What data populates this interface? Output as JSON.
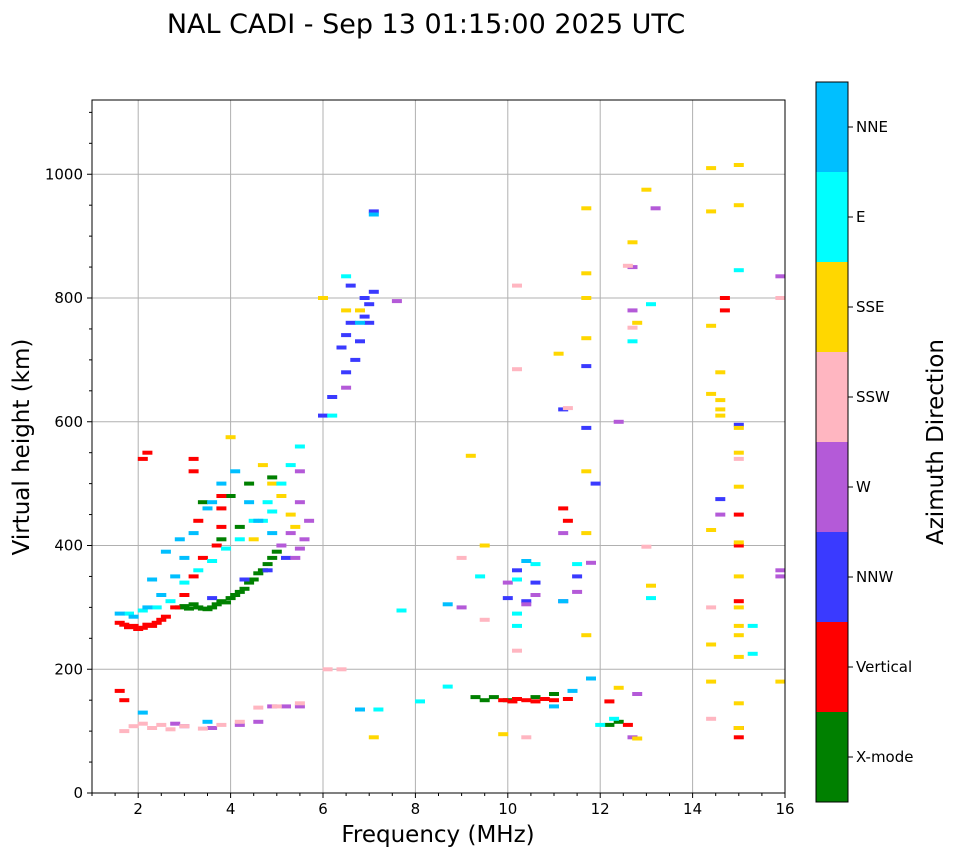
{
  "chart_data": {
    "type": "scatter",
    "title": "NAL CADI - Sep 13 01:15:00 2025 UTC",
    "xlabel": "Frequency (MHz)",
    "ylabel": "Virtual height (km)",
    "xlim": [
      1,
      16
    ],
    "ylim": [
      0,
      1120
    ],
    "x_ticks": [
      2,
      4,
      6,
      8,
      10,
      12,
      14,
      16
    ],
    "y_ticks": [
      0,
      200,
      400,
      600,
      800,
      1000
    ],
    "grid": true,
    "colorbar": {
      "label": "Azimuth Direction",
      "categories": [
        "X-mode",
        "Vertical",
        "NNW",
        "W",
        "SSW",
        "SSE",
        "E",
        "NNE"
      ],
      "colors": [
        "#008000",
        "#ff0000",
        "#3a3aff",
        "#b45ad8",
        "#ffb6c1",
        "#ffd700",
        "#00ffff",
        "#00bfff"
      ]
    },
    "series": [
      {
        "name": "X-mode",
        "points": [
          [
            2.9,
            300
          ],
          [
            3.0,
            302
          ],
          [
            3.1,
            298
          ],
          [
            3.2,
            305
          ],
          [
            3.3,
            300
          ],
          [
            3.4,
            298
          ],
          [
            3.5,
            297
          ],
          [
            3.6,
            300
          ],
          [
            3.7,
            305
          ],
          [
            3.8,
            310
          ],
          [
            3.9,
            308
          ],
          [
            4.0,
            315
          ],
          [
            4.1,
            320
          ],
          [
            4.2,
            325
          ],
          [
            4.3,
            330
          ],
          [
            4.4,
            340
          ],
          [
            4.5,
            345
          ],
          [
            4.6,
            355
          ],
          [
            4.7,
            360
          ],
          [
            4.8,
            370
          ],
          [
            4.9,
            380
          ],
          [
            5.0,
            390
          ],
          [
            3.4,
            470
          ],
          [
            4.0,
            480
          ],
          [
            4.4,
            500
          ],
          [
            4.9,
            510
          ],
          [
            3.8,
            410
          ],
          [
            4.2,
            430
          ],
          [
            9.3,
            155
          ],
          [
            9.5,
            150
          ],
          [
            9.7,
            155
          ],
          [
            10.0,
            150
          ],
          [
            10.6,
            155
          ],
          [
            11.0,
            160
          ],
          [
            12.4,
            115
          ],
          [
            12.2,
            110
          ]
        ]
      },
      {
        "name": "Vertical",
        "points": [
          [
            1.6,
            275
          ],
          [
            1.7,
            272
          ],
          [
            1.8,
            268
          ],
          [
            1.9,
            270
          ],
          [
            2.0,
            265
          ],
          [
            2.1,
            267
          ],
          [
            2.2,
            272
          ],
          [
            2.3,
            270
          ],
          [
            2.4,
            275
          ],
          [
            2.5,
            280
          ],
          [
            2.6,
            285
          ],
          [
            2.8,
            300
          ],
          [
            3.0,
            320
          ],
          [
            3.2,
            350
          ],
          [
            3.4,
            380
          ],
          [
            1.7,
            150
          ],
          [
            1.6,
            165
          ],
          [
            2.2,
            550
          ],
          [
            2.1,
            540
          ],
          [
            3.2,
            520
          ],
          [
            3.2,
            540
          ],
          [
            3.8,
            480
          ],
          [
            3.8,
            460
          ],
          [
            3.8,
            430
          ],
          [
            3.7,
            400
          ],
          [
            3.3,
            440
          ],
          [
            9.9,
            150
          ],
          [
            10.1,
            148
          ],
          [
            10.2,
            152
          ],
          [
            10.4,
            150
          ],
          [
            10.6,
            148
          ],
          [
            10.8,
            152
          ],
          [
            11.0,
            150
          ],
          [
            11.3,
            152
          ],
          [
            12.6,
            110
          ],
          [
            11.2,
            460
          ],
          [
            11.3,
            440
          ],
          [
            14.7,
            780
          ],
          [
            14.7,
            800
          ],
          [
            15.0,
            450
          ],
          [
            15.0,
            400
          ],
          [
            15.0,
            310
          ],
          [
            15.0,
            90
          ],
          [
            15.0,
            105
          ],
          [
            12.2,
            148
          ]
        ]
      },
      {
        "name": "NNW",
        "points": [
          [
            6.4,
            720
          ],
          [
            6.5,
            740
          ],
          [
            6.6,
            760
          ],
          [
            6.7,
            700
          ],
          [
            6.8,
            730
          ],
          [
            6.9,
            770
          ],
          [
            7.0,
            790
          ],
          [
            7.1,
            810
          ],
          [
            6.6,
            820
          ],
          [
            6.9,
            800
          ],
          [
            7.0,
            760
          ],
          [
            6.5,
            680
          ],
          [
            6.2,
            640
          ],
          [
            6.0,
            610
          ],
          [
            7.1,
            940
          ],
          [
            5.2,
            380
          ],
          [
            4.8,
            360
          ],
          [
            4.3,
            345
          ],
          [
            3.6,
            315
          ],
          [
            10.2,
            360
          ],
          [
            10.6,
            340
          ],
          [
            11.2,
            310
          ],
          [
            11.5,
            350
          ],
          [
            11.7,
            690
          ],
          [
            11.7,
            590
          ],
          [
            11.9,
            500
          ],
          [
            14.6,
            475
          ],
          [
            15.0,
            595
          ],
          [
            11.2,
            620
          ],
          [
            10.4,
            310
          ],
          [
            10.0,
            315
          ]
        ]
      },
      {
        "name": "W",
        "points": [
          [
            5.4,
            380
          ],
          [
            5.5,
            395
          ],
          [
            5.6,
            410
          ],
          [
            5.7,
            440
          ],
          [
            5.3,
            420
          ],
          [
            5.1,
            400
          ],
          [
            5.5,
            520
          ],
          [
            5.5,
            470
          ],
          [
            4.9,
            140
          ],
          [
            5.2,
            140
          ],
          [
            5.5,
            140
          ],
          [
            4.6,
            115
          ],
          [
            4.2,
            110
          ],
          [
            3.6,
            105
          ],
          [
            3.0,
            108
          ],
          [
            2.8,
            112
          ],
          [
            6.5,
            655
          ],
          [
            7.6,
            795
          ],
          [
            9.0,
            300
          ],
          [
            10.0,
            340
          ],
          [
            10.4,
            305
          ],
          [
            10.6,
            320
          ],
          [
            11.2,
            420
          ],
          [
            11.8,
            372
          ],
          [
            12.4,
            600
          ],
          [
            12.7,
            780
          ],
          [
            13.2,
            945
          ],
          [
            12.7,
            850
          ],
          [
            15.9,
            835
          ],
          [
            15.9,
            350
          ],
          [
            15.9,
            360
          ],
          [
            14.6,
            450
          ],
          [
            12.7,
            90
          ],
          [
            12.8,
            160
          ],
          [
            11.5,
            325
          ]
        ]
      },
      {
        "name": "SSW",
        "points": [
          [
            1.7,
            100
          ],
          [
            1.9,
            108
          ],
          [
            2.1,
            112
          ],
          [
            2.3,
            105
          ],
          [
            2.5,
            110
          ],
          [
            2.7,
            103
          ],
          [
            3.0,
            108
          ],
          [
            3.4,
            104
          ],
          [
            3.8,
            110
          ],
          [
            4.2,
            115
          ],
          [
            4.6,
            138
          ],
          [
            5.0,
            140
          ],
          [
            5.5,
            145
          ],
          [
            6.1,
            200
          ],
          [
            6.4,
            200
          ],
          [
            9.0,
            380
          ],
          [
            9.5,
            280
          ],
          [
            10.2,
            685
          ],
          [
            10.2,
            820
          ],
          [
            10.2,
            230
          ],
          [
            11.3,
            622
          ],
          [
            12.7,
            752
          ],
          [
            12.6,
            852
          ],
          [
            13.0,
            398
          ],
          [
            14.4,
            120
          ],
          [
            14.4,
            300
          ],
          [
            15.0,
            540
          ],
          [
            15.9,
            800
          ],
          [
            10.4,
            90
          ]
        ]
      },
      {
        "name": "SSE",
        "points": [
          [
            4.0,
            575
          ],
          [
            4.7,
            530
          ],
          [
            4.9,
            500
          ],
          [
            5.1,
            480
          ],
          [
            5.3,
            450
          ],
          [
            5.4,
            430
          ],
          [
            4.5,
            410
          ],
          [
            6.0,
            800
          ],
          [
            6.5,
            780
          ],
          [
            6.8,
            780
          ],
          [
            7.1,
            90
          ],
          [
            9.5,
            400
          ],
          [
            9.2,
            545
          ],
          [
            11.1,
            710
          ],
          [
            11.7,
            945
          ],
          [
            11.7,
            840
          ],
          [
            11.7,
            800
          ],
          [
            11.7,
            735
          ],
          [
            11.7,
            520
          ],
          [
            11.7,
            420
          ],
          [
            11.7,
            255
          ],
          [
            12.7,
            890
          ],
          [
            12.8,
            760
          ],
          [
            13.0,
            975
          ],
          [
            13.1,
            335
          ],
          [
            12.4,
            170
          ],
          [
            14.4,
            1010
          ],
          [
            14.4,
            940
          ],
          [
            14.4,
            755
          ],
          [
            14.4,
            645
          ],
          [
            14.4,
            425
          ],
          [
            14.4,
            240
          ],
          [
            14.4,
            180
          ],
          [
            14.6,
            680
          ],
          [
            14.6,
            635
          ],
          [
            14.6,
            620
          ],
          [
            14.6,
            610
          ],
          [
            15.0,
            1015
          ],
          [
            15.0,
            950
          ],
          [
            15.0,
            590
          ],
          [
            15.0,
            550
          ],
          [
            15.0,
            495
          ],
          [
            15.0,
            405
          ],
          [
            15.0,
            350
          ],
          [
            15.0,
            300
          ],
          [
            15.0,
            270
          ],
          [
            15.0,
            255
          ],
          [
            15.0,
            220
          ],
          [
            15.0,
            145
          ],
          [
            15.0,
            105
          ],
          [
            15.9,
            180
          ],
          [
            12.8,
            88
          ],
          [
            9.9,
            95
          ]
        ]
      },
      {
        "name": "E",
        "points": [
          [
            1.8,
            290
          ],
          [
            2.1,
            295
          ],
          [
            2.4,
            300
          ],
          [
            2.7,
            310
          ],
          [
            3.0,
            340
          ],
          [
            3.3,
            360
          ],
          [
            3.6,
            375
          ],
          [
            3.9,
            395
          ],
          [
            4.2,
            410
          ],
          [
            4.5,
            440
          ],
          [
            4.8,
            470
          ],
          [
            5.1,
            500
          ],
          [
            5.3,
            530
          ],
          [
            5.5,
            560
          ],
          [
            4.9,
            455
          ],
          [
            4.7,
            440
          ],
          [
            6.2,
            610
          ],
          [
            6.5,
            835
          ],
          [
            7.7,
            295
          ],
          [
            8.7,
            172
          ],
          [
            9.4,
            350
          ],
          [
            10.2,
            345
          ],
          [
            10.2,
            290
          ],
          [
            10.2,
            270
          ],
          [
            10.6,
            370
          ],
          [
            11.5,
            370
          ],
          [
            12.0,
            110
          ],
          [
            12.3,
            120
          ],
          [
            12.7,
            730
          ],
          [
            13.1,
            790
          ],
          [
            13.1,
            315
          ],
          [
            15.0,
            845
          ],
          [
            15.3,
            270
          ],
          [
            15.3,
            225
          ],
          [
            7.2,
            135
          ],
          [
            8.1,
            148
          ]
        ]
      },
      {
        "name": "NNE",
        "points": [
          [
            1.6,
            290
          ],
          [
            1.9,
            285
          ],
          [
            2.2,
            300
          ],
          [
            2.5,
            320
          ],
          [
            2.8,
            350
          ],
          [
            3.0,
            380
          ],
          [
            3.2,
            420
          ],
          [
            3.5,
            460
          ],
          [
            3.8,
            500
          ],
          [
            4.1,
            520
          ],
          [
            4.4,
            470
          ],
          [
            4.6,
            440
          ],
          [
            4.9,
            420
          ],
          [
            2.9,
            410
          ],
          [
            2.6,
            390
          ],
          [
            2.3,
            345
          ],
          [
            3.6,
            470
          ],
          [
            6.8,
            760
          ],
          [
            7.1,
            935
          ],
          [
            8.7,
            305
          ],
          [
            10.4,
            375
          ],
          [
            11.0,
            140
          ],
          [
            11.4,
            165
          ],
          [
            11.8,
            185
          ],
          [
            6.8,
            135
          ],
          [
            3.5,
            115
          ],
          [
            2.1,
            130
          ],
          [
            11.2,
            310
          ]
        ]
      }
    ]
  }
}
